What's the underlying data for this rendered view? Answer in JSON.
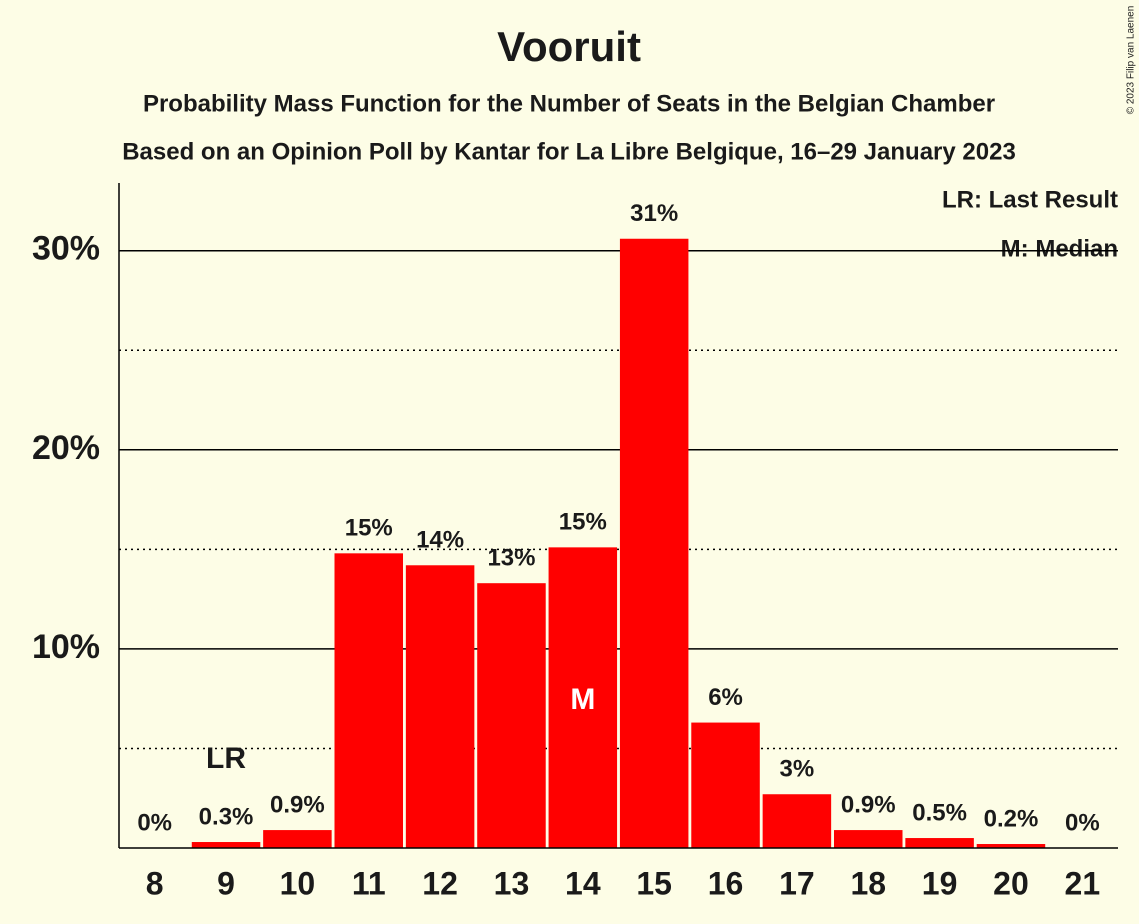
{
  "chart_data": {
    "type": "bar",
    "title": "Vooruit",
    "subtitle": "Probability Mass Function for the Number of Seats in the Belgian Chamber",
    "subtitle2": "Based on an Opinion Poll by Kantar for La Libre Belgique, 16–29 January 2023",
    "categories": [
      "8",
      "9",
      "10",
      "11",
      "12",
      "13",
      "14",
      "15",
      "16",
      "17",
      "18",
      "19",
      "20",
      "21"
    ],
    "values": [
      0,
      0.3,
      0.9,
      14.8,
      14.2,
      13.3,
      15.1,
      30.6,
      6.3,
      2.7,
      0.9,
      0.5,
      0.2,
      0
    ],
    "value_labels": [
      "0%",
      "0.3%",
      "0.9%",
      "15%",
      "14%",
      "13%",
      "15%",
      "31%",
      "6%",
      "3%",
      "0.9%",
      "0.5%",
      "0.2%",
      "0%"
    ],
    "color": "#ff0000",
    "ylim": [
      0,
      33.4
    ],
    "yticks": [
      {
        "value": 10,
        "label": "10%"
      },
      {
        "value": 20,
        "label": "20%"
      },
      {
        "value": 30,
        "label": "30%"
      }
    ],
    "minor_yticks": [
      5,
      15,
      25
    ],
    "grid": true,
    "last_result": {
      "text": "LR",
      "category": "9"
    },
    "median": {
      "text": "M",
      "category": "14"
    },
    "legend": [
      "LR: Last Result",
      "M: Median"
    ],
    "copyright": "© 2023 Filip van Laenen"
  }
}
